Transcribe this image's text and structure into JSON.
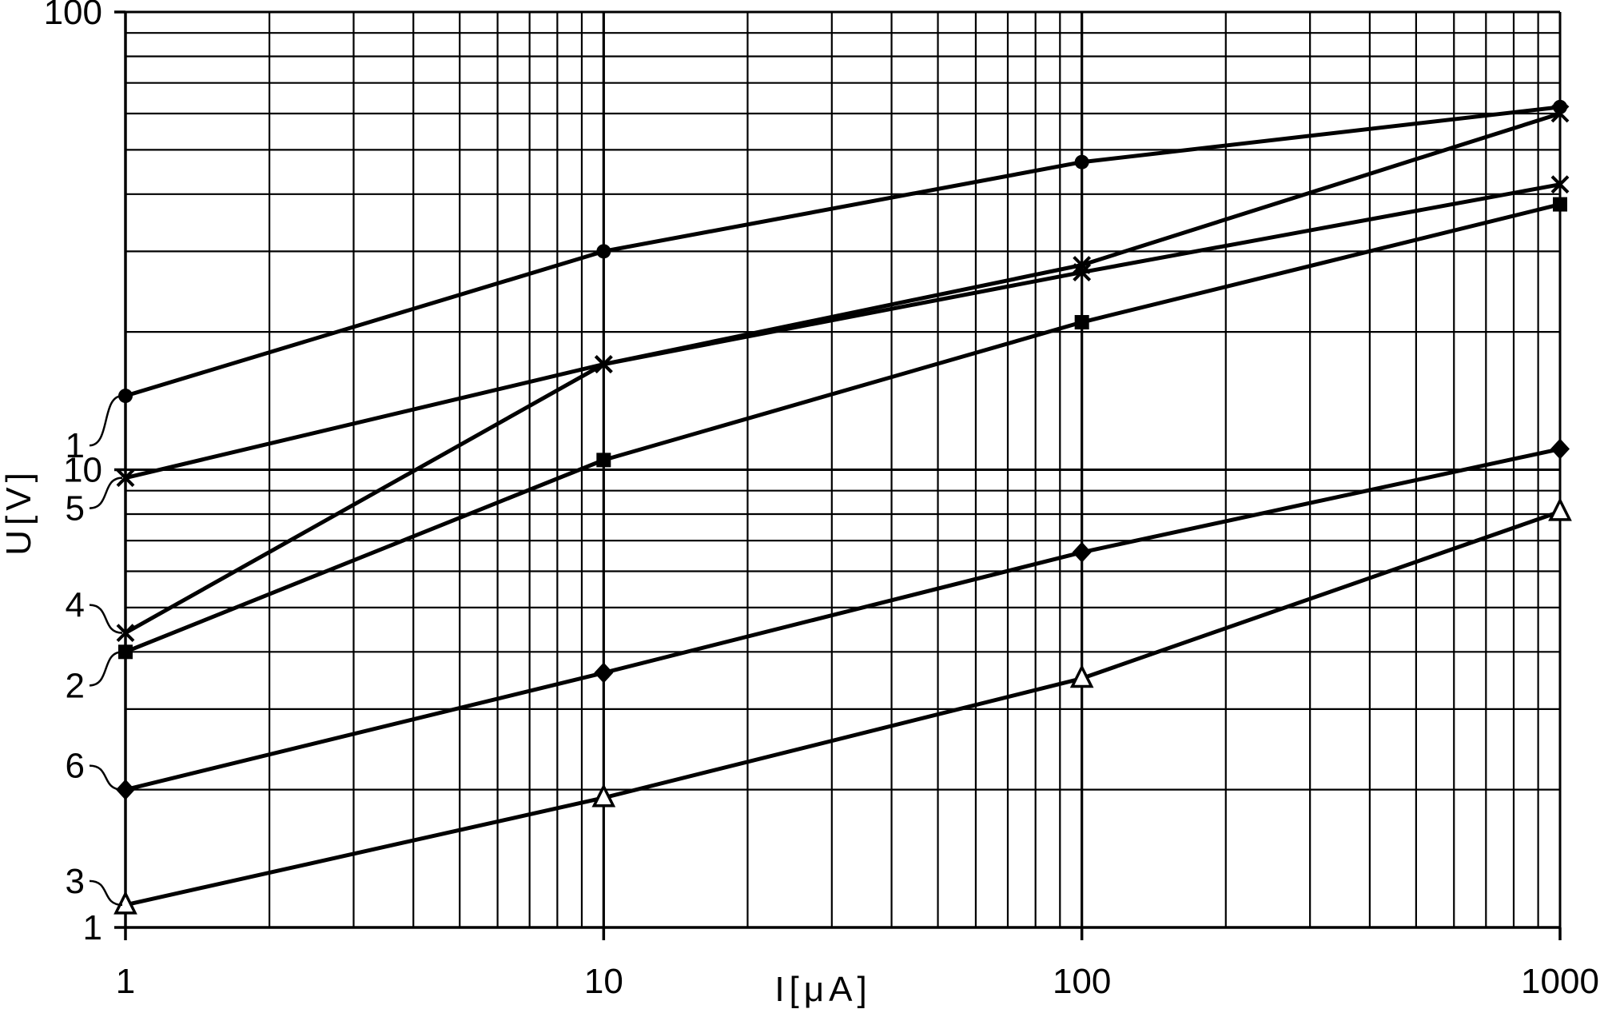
{
  "chart_data": {
    "type": "line",
    "x_scale": "log",
    "y_scale": "log",
    "xlim": [
      1,
      1000
    ],
    "ylim": [
      1,
      100
    ],
    "xlabel": "I[μA]",
    "ylabel": "U[V]",
    "grid": true,
    "x_ticks": [
      "1",
      "10",
      "100",
      "1000"
    ],
    "y_ticks": [
      "1",
      "10",
      "100"
    ],
    "x": [
      1,
      10,
      100,
      1000
    ],
    "series": [
      {
        "name": "1",
        "marker": "circle",
        "values": [
          14.5,
          30,
          47,
          62
        ]
      },
      {
        "name": "4",
        "marker": "x",
        "values": [
          4.4,
          17,
          27,
          42
        ]
      },
      {
        "name": "5",
        "marker": "x",
        "values": [
          9.6,
          17,
          28,
          60
        ]
      },
      {
        "name": "2",
        "marker": "square",
        "values": [
          4.0,
          10.5,
          21,
          38
        ]
      },
      {
        "name": "6",
        "marker": "diamond",
        "values": [
          2.0,
          3.6,
          6.6,
          11.1
        ]
      },
      {
        "name": "3",
        "marker": "triangle-open",
        "values": [
          1.12,
          1.92,
          3.5,
          8.1
        ]
      }
    ]
  }
}
